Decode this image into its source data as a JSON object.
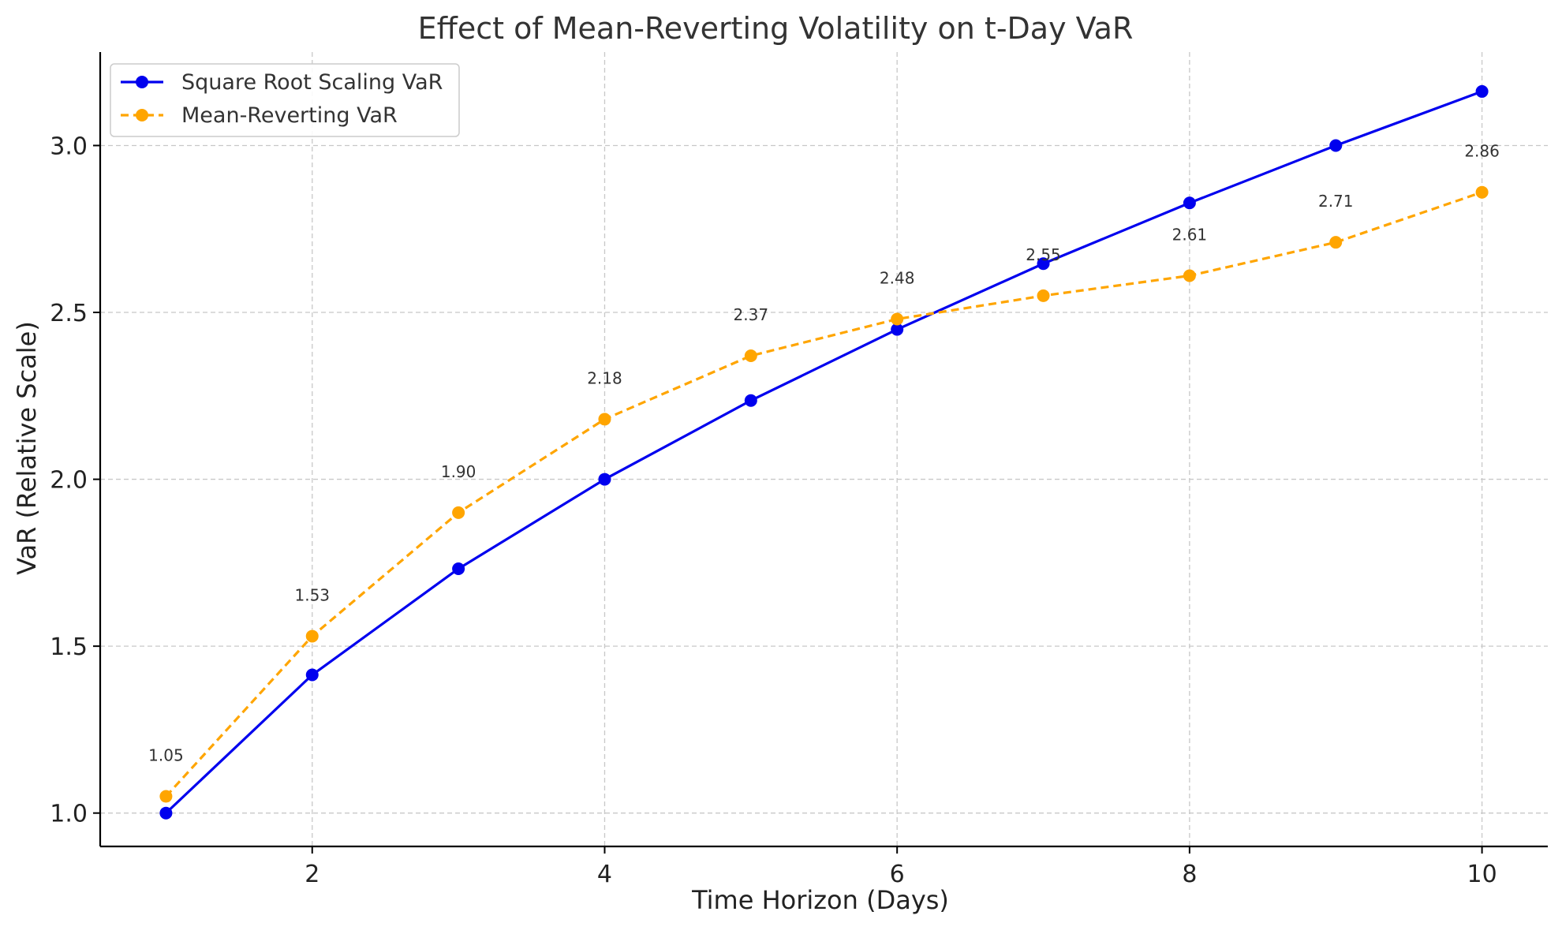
{
  "chart_data": {
    "type": "line",
    "title": "Effect of Mean-Reverting Volatility on t-Day VaR",
    "xlabel": "Time Horizon (Days)",
    "ylabel": "VaR (Relative Scale)",
    "x": [
      1,
      2,
      3,
      4,
      5,
      6,
      7,
      8,
      9,
      10
    ],
    "xlim": [
      0.55,
      10.45
    ],
    "ylim": [
      0.9,
      3.28
    ],
    "xticks": [
      2,
      4,
      6,
      8,
      10
    ],
    "xtick_labels": [
      "2",
      "4",
      "6",
      "8",
      "10"
    ],
    "yticks": [
      1.0,
      1.5,
      2.0,
      2.5,
      3.0
    ],
    "ytick_labels": [
      "1.0",
      "1.5",
      "2.0",
      "2.5",
      "3.0"
    ],
    "grid": true,
    "legend_position": "top-left",
    "series": [
      {
        "name": "Square Root Scaling VaR",
        "color": "#0000ee",
        "line_style": "solid",
        "marker": "circle",
        "values": [
          1.0,
          1.414,
          1.732,
          2.0,
          2.236,
          2.449,
          2.646,
          2.828,
          3.0,
          3.162
        ]
      },
      {
        "name": "Mean-Reverting VaR",
        "color": "#ffa500",
        "line_style": "dashed",
        "marker": "circle",
        "values": [
          1.05,
          1.53,
          1.9,
          2.18,
          2.37,
          2.48,
          2.55,
          2.61,
          2.71,
          2.86
        ],
        "data_labels": [
          "1.05",
          "1.53",
          "1.90",
          "2.18",
          "2.37",
          "2.48",
          "2.55",
          "2.61",
          "2.71",
          "2.86"
        ]
      }
    ]
  }
}
